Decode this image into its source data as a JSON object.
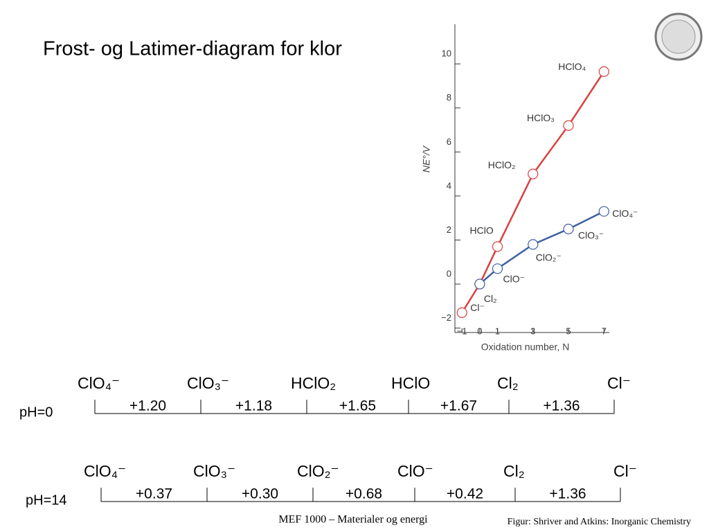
{
  "title": "Frost- og Latimer-diagram for klor",
  "chart_data": {
    "type": "line",
    "ylabel": "NE°/V",
    "xlabel": "Oxidation number, N",
    "xlim": [
      -1.4,
      7.3
    ],
    "ylim": [
      -2.2,
      11.8
    ],
    "xticks": [
      {
        "value": -1,
        "label": "−1"
      },
      0,
      1,
      3,
      5,
      7
    ],
    "yticks": [
      {
        "value": -2,
        "label": "−2"
      },
      0,
      2,
      4,
      6,
      8,
      10
    ],
    "series": [
      {
        "color": "#d9403f",
        "x": [
          -1,
          0,
          1,
          3,
          5,
          7
        ],
        "values": [
          -1.3,
          0,
          1.7,
          5.0,
          7.2,
          9.65
        ],
        "point_labels": [
          "Cl⁻",
          "Cl₂",
          "HClO",
          "HClO₂",
          "HClO₃",
          "HClO₄"
        ]
      },
      {
        "color": "#3d5fa0",
        "x": [
          0,
          1,
          3,
          5,
          7
        ],
        "values": [
          0,
          0.7,
          1.8,
          2.5,
          3.3
        ],
        "point_labels": [
          null,
          "ClO⁻",
          "ClO₂⁻",
          "ClO₃⁻",
          "ClO₄⁻"
        ]
      }
    ]
  },
  "latimer": [
    {
      "label": "pH=0",
      "species": [
        "ClO₄⁻",
        "ClO₃⁻",
        "HClO₂",
        "HClO",
        "Cl₂",
        "Cl⁻"
      ],
      "potentials": [
        "+1.20",
        "+1.18",
        "+1.65",
        "+1.67",
        "+1.36"
      ]
    },
    {
      "label": "pH=14",
      "species": [
        "ClO₄⁻",
        "ClO₃⁻",
        "ClO₂⁻",
        "ClO⁻",
        "Cl₂",
        "Cl⁻"
      ],
      "potentials": [
        "+0.37",
        "+0.30",
        "+0.68",
        "+0.42",
        "+1.36"
      ]
    }
  ],
  "footer": {
    "course": "MEF 1000 – Materialer og energi",
    "credit": "Figur: Shriver and Atkins: Inorganic Chemistry"
  }
}
